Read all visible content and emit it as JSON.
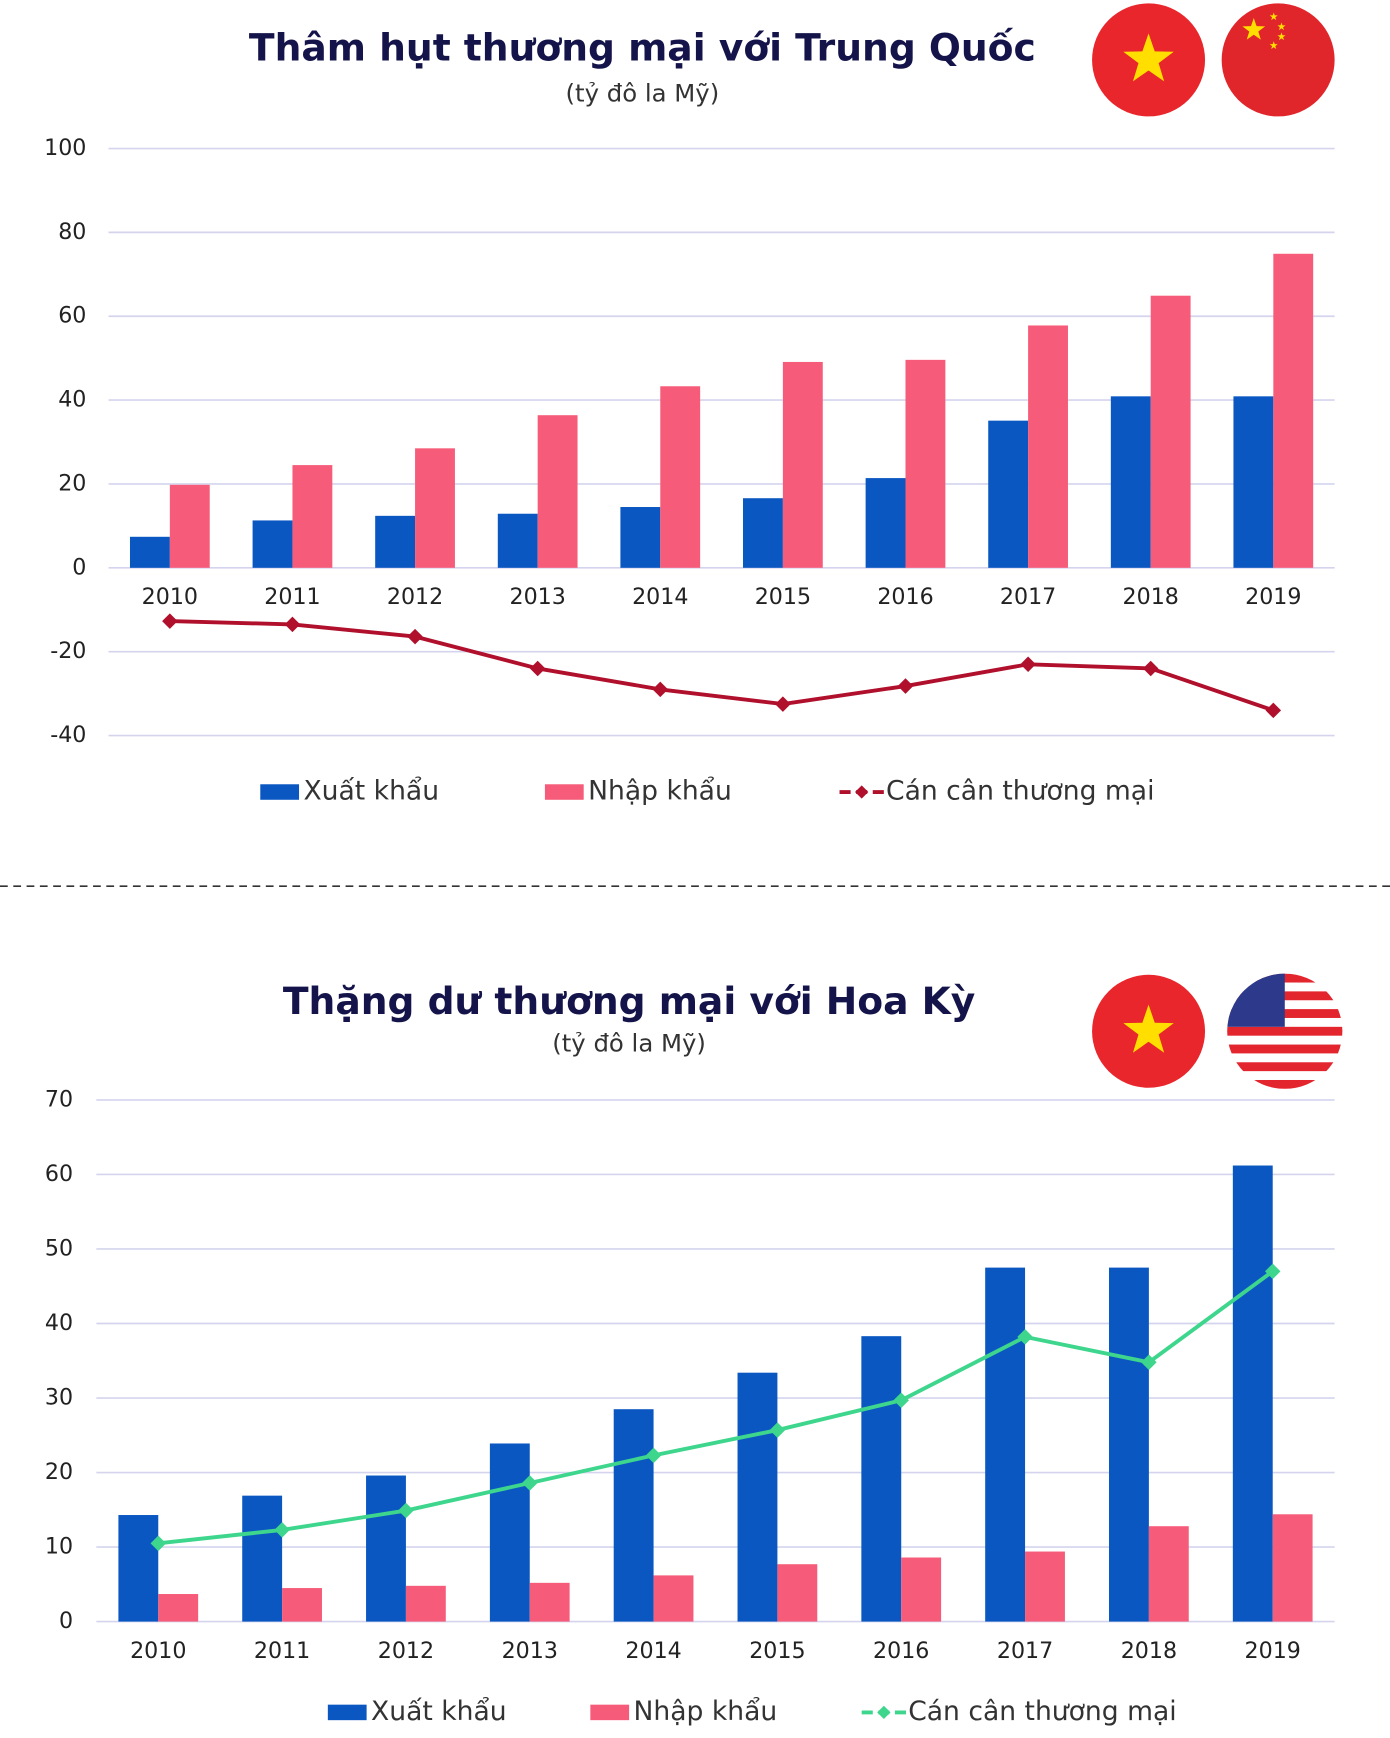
{
  "chart_data": [
    {
      "type": "bar",
      "title": "Thâm hụt thương mại với Trung Quốc",
      "subtitle": "(tỷ đô la Mỹ)",
      "categories": [
        "2010",
        "2011",
        "2012",
        "2013",
        "2014",
        "2015",
        "2016",
        "2017",
        "2018",
        "2019"
      ],
      "series": [
        {
          "name": "Xuất khẩu",
          "color": "#0a57c2",
          "values": [
            7.4,
            11.3,
            12.4,
            12.9,
            14.5,
            16.6,
            21.4,
            35.1,
            40.9,
            40.9
          ]
        },
        {
          "name": "Nhập khẩu",
          "color": "#f65c79",
          "values": [
            19.8,
            24.5,
            28.5,
            36.4,
            43.3,
            49.1,
            49.6,
            57.8,
            64.9,
            74.9
          ]
        },
        {
          "name": "Cán cân thương mại",
          "color": "#b0102c",
          "type": "line",
          "values": [
            -12.7,
            -13.5,
            -16.4,
            -24,
            -29,
            -32.5,
            -28.2,
            -23,
            -24,
            -34
          ]
        }
      ],
      "ylim": [
        -40,
        100
      ],
      "yticks": [
        -40,
        -20,
        0,
        20,
        40,
        60,
        80,
        100
      ],
      "grid": true
    },
    {
      "type": "bar",
      "title": "Thặng dư thương mại với Hoa Kỳ",
      "subtitle": "(tỷ đô la Mỹ)",
      "categories": [
        "2010",
        "2011",
        "2012",
        "2013",
        "2014",
        "2015",
        "2016",
        "2017",
        "2018",
        "2019"
      ],
      "series": [
        {
          "name": "Xuất khẩu",
          "color": "#0a57c2",
          "values": [
            14.3,
            16.9,
            19.6,
            23.9,
            28.5,
            33.4,
            38.3,
            47.5,
            47.5,
            61.2
          ]
        },
        {
          "name": "Nhập khẩu",
          "color": "#f65c79",
          "values": [
            3.7,
            4.5,
            4.8,
            5.2,
            6.2,
            7.7,
            8.6,
            9.4,
            12.8,
            14.4
          ]
        },
        {
          "name": "Cán cân thương mại",
          "color": "#3dd68c",
          "type": "line",
          "values": [
            10.5,
            12.3,
            14.9,
            18.6,
            22.3,
            25.7,
            29.7,
            38.2,
            34.8,
            47
          ]
        }
      ],
      "ylim": [
        0,
        70
      ],
      "yticks": [
        0,
        10,
        20,
        30,
        40,
        50,
        60,
        70
      ],
      "grid": true
    }
  ]
}
